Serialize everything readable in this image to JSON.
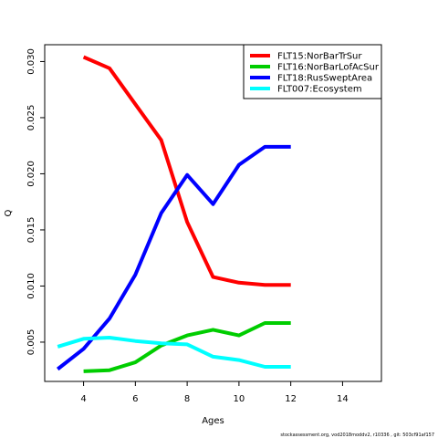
{
  "chart_data": {
    "type": "line",
    "title": "",
    "xlabel": "Ages",
    "ylabel": "Q",
    "xlim": [
      2.5,
      15.5
    ],
    "ylim": [
      0.0015,
      0.0315
    ],
    "xticks": [
      4,
      6,
      8,
      10,
      12,
      14
    ],
    "yticks": [
      0.005,
      0.01,
      0.015,
      0.02,
      0.025,
      0.03
    ],
    "ytick_labels": [
      "0.005",
      "0.010",
      "0.015",
      "0.020",
      "0.025",
      "0.030"
    ],
    "grid": false,
    "legend_position": "top-right",
    "series": [
      {
        "name": "FLT15:NorBarTrSur",
        "color": "#ff0000",
        "x": [
          4,
          5,
          6,
          7,
          8,
          9,
          10,
          11,
          12
        ],
        "y": [
          0.0304,
          0.0294,
          0.0262,
          0.023,
          0.0157,
          0.0108,
          0.0103,
          0.0101,
          0.0101
        ]
      },
      {
        "name": "FLT16:NorBarLofAcSur",
        "color": "#00cd00",
        "x": [
          4,
          5,
          6,
          7,
          8,
          9,
          10,
          11,
          12
        ],
        "y": [
          0.0024,
          0.0025,
          0.0032,
          0.0047,
          0.0056,
          0.0061,
          0.0056,
          0.0067,
          0.0067
        ]
      },
      {
        "name": "FLT18:RusSweptArea",
        "color": "#0000ff",
        "x": [
          3,
          4,
          5,
          6,
          7,
          8,
          9,
          10,
          11,
          12
        ],
        "y": [
          0.0026,
          0.0044,
          0.0071,
          0.011,
          0.0165,
          0.0199,
          0.0173,
          0.0208,
          0.0224,
          0.0224
        ]
      },
      {
        "name": "FLT007:Ecosystem",
        "color": "#00ffff",
        "x": [
          3,
          4,
          5,
          6,
          7,
          8,
          9,
          10,
          11,
          12
        ],
        "y": [
          0.0046,
          0.0053,
          0.0054,
          0.0051,
          0.0049,
          0.0048,
          0.0037,
          0.0034,
          0.0028,
          0.0028
        ]
      }
    ],
    "footer": "stockassessment.org,  vod2018moddv2,  r10336 ,  git: 503cf91af157"
  }
}
